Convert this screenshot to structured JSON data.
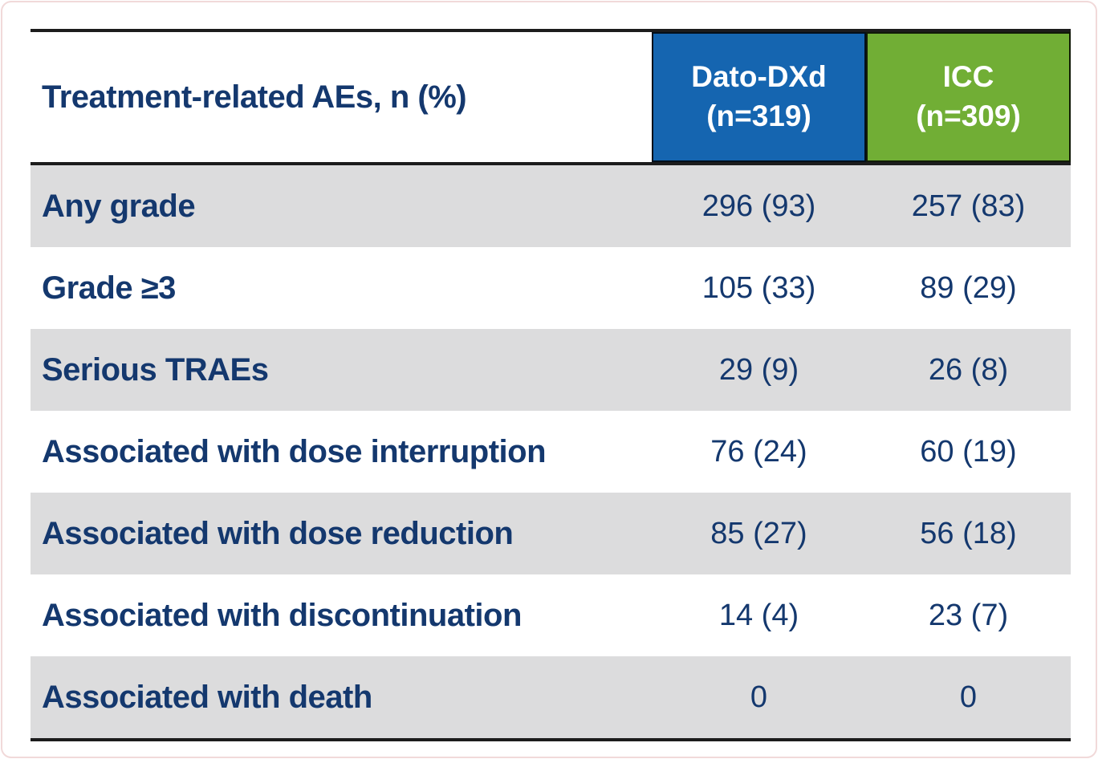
{
  "colors": {
    "navy": "#14386E",
    "blue": "#1565B0",
    "green": "#71AE35",
    "shadedRow": "#DCDCDD",
    "rule": "#1c1c1c",
    "frame": "#f1d9d9"
  },
  "table": {
    "title": "Treatment-related AEs, n (%)",
    "columns": [
      {
        "name": "Dato-DXd",
        "n": "(n=319)"
      },
      {
        "name": "ICC",
        "n": "(n=309)"
      }
    ],
    "rows": [
      {
        "label": "Any grade",
        "dato": "296 (93)",
        "icc": "257 (83)",
        "shaded": true
      },
      {
        "label": "Grade ≥3",
        "dato": "105 (33)",
        "icc": "89 (29)",
        "shaded": false
      },
      {
        "label": "Serious TRAEs",
        "dato": "29 (9)",
        "icc": "26 (8)",
        "shaded": true
      },
      {
        "label": "Associated with dose interruption",
        "dato": "76 (24)",
        "icc": "60 (19)",
        "shaded": false
      },
      {
        "label": "Associated with dose reduction",
        "dato": "85 (27)",
        "icc": "56 (18)",
        "shaded": true
      },
      {
        "label": "Associated with discontinuation",
        "dato": "14 (4)",
        "icc": "23 (7)",
        "shaded": false
      },
      {
        "label": "Associated with death",
        "dato": "0",
        "icc": "0",
        "shaded": true
      }
    ]
  }
}
